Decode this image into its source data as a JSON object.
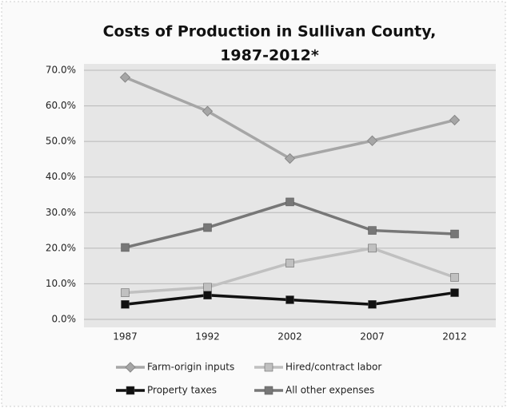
{
  "chart_data": {
    "type": "line",
    "title": [
      "Costs of Production in Sullivan County,",
      "1987-2012*"
    ],
    "categories": [
      "1987",
      "1992",
      "2002",
      "2007",
      "2012"
    ],
    "series": [
      {
        "name": "Farm-origin inputs",
        "color": "#a6a6a6",
        "marker": "diamond",
        "values": [
          68,
          58.5,
          45.2,
          50.2,
          56
        ]
      },
      {
        "name": "Hired/contract labor",
        "color": "#c0c0c0",
        "marker": "square",
        "values": [
          7.5,
          9,
          15.8,
          20,
          11.8
        ]
      },
      {
        "name": "Property taxes",
        "color": "#111111",
        "marker": "square",
        "values": [
          4.2,
          6.8,
          5.5,
          4.2,
          7.5
        ]
      },
      {
        "name": "All other expenses",
        "color": "#777777",
        "marker": "square",
        "values": [
          20.2,
          25.8,
          33,
          25,
          24
        ]
      }
    ],
    "ylim": [
      0,
      70
    ],
    "yticks": [
      {
        "value": 0,
        "label": "0.0%"
      },
      {
        "value": 10,
        "label": "10.0%"
      },
      {
        "value": 20,
        "label": "20.0%"
      },
      {
        "value": 30,
        "label": "30.0%"
      },
      {
        "value": 40,
        "label": "40.0%"
      },
      {
        "value": 50,
        "label": "50.0%"
      },
      {
        "value": 60,
        "label": "60.0%"
      },
      {
        "value": 70,
        "label": "70.0%"
      }
    ],
    "grid": true,
    "legend": "bottom"
  }
}
